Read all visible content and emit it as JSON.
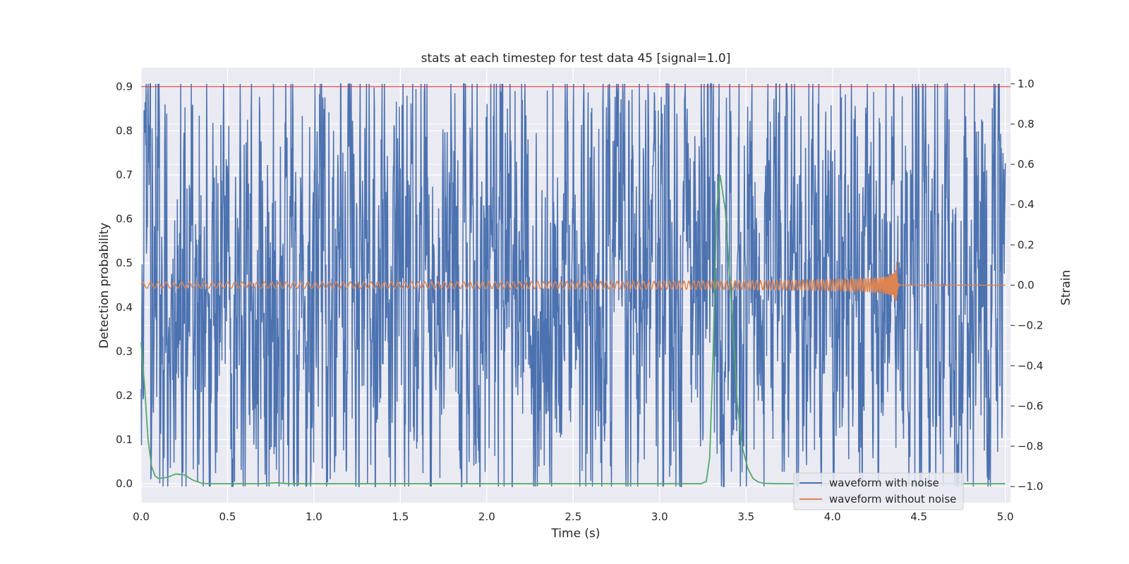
{
  "chart_data": {
    "type": "line",
    "title": "stats at each timestep for test data 45 [signal=1.0]",
    "xlabel": "Time (s)",
    "ylabel_left": "Detection probability",
    "ylabel_right": "Strain",
    "xlim": [
      0.0,
      5.03
    ],
    "ylim_left": [
      -0.043,
      0.943
    ],
    "ylim_right": [
      -1.08,
      1.08
    ],
    "x_ticks": [
      "0.0",
      "0.5",
      "1.0",
      "1.5",
      "2.0",
      "2.5",
      "3.0",
      "3.5",
      "4.0",
      "4.5",
      "5.0"
    ],
    "y_ticks_left": [
      "0.0",
      "0.1",
      "0.2",
      "0.3",
      "0.4",
      "0.5",
      "0.6",
      "0.7",
      "0.8",
      "0.9"
    ],
    "y_ticks_right": [
      "−1.0",
      "−0.8",
      "−0.6",
      "−0.4",
      "−0.2",
      "0.0",
      "0.2",
      "0.4",
      "0.6",
      "0.8",
      "1.0"
    ],
    "grid": true,
    "legend_position": "lower-right",
    "threshold": {
      "axis": "left",
      "y": 0.9,
      "color": "#d62728"
    },
    "series": [
      {
        "name": "waveform with noise",
        "axis": "right",
        "color": "#4c72b0",
        "kind": "noise",
        "x_range": [
          0.0,
          5.0
        ],
        "peak_min": -1.0,
        "peak_max": 1.0,
        "typical_amplitude": 0.65
      },
      {
        "name": "waveform without noise",
        "axis": "right",
        "color": "#dd8452",
        "kind": "chirp",
        "x_range": [
          0.0,
          5.0
        ],
        "start_amplitude": 0.015,
        "merger_time": 4.37,
        "peak_amplitude": 0.16
      },
      {
        "axis": "left",
        "color": "#55a868",
        "kind": "probability",
        "x": [
          0.0,
          0.02,
          0.04,
          0.06,
          0.08,
          0.1,
          0.15,
          0.2,
          0.25,
          0.3,
          0.35,
          0.4,
          0.5,
          0.6,
          0.7,
          0.78,
          0.85,
          1.0,
          1.5,
          2.0,
          2.5,
          3.0,
          3.24,
          3.27,
          3.29,
          3.31,
          3.33,
          3.35,
          3.38,
          3.42,
          3.45,
          3.48,
          3.51,
          3.54,
          3.57,
          3.6,
          3.7,
          4.0,
          4.5,
          5.0
        ],
        "y": [
          0.32,
          0.22,
          0.1,
          0.04,
          0.018,
          0.012,
          0.014,
          0.022,
          0.02,
          0.008,
          0.001,
          0.0,
          0.0,
          0.0,
          0.0,
          0.002,
          0.0,
          0.0,
          0.0,
          0.0,
          0.0,
          0.0,
          0.0,
          0.005,
          0.06,
          0.3,
          0.62,
          0.7,
          0.62,
          0.38,
          0.18,
          0.08,
          0.035,
          0.012,
          0.004,
          0.001,
          0.0,
          0.0,
          0.0,
          0.0
        ]
      }
    ]
  }
}
